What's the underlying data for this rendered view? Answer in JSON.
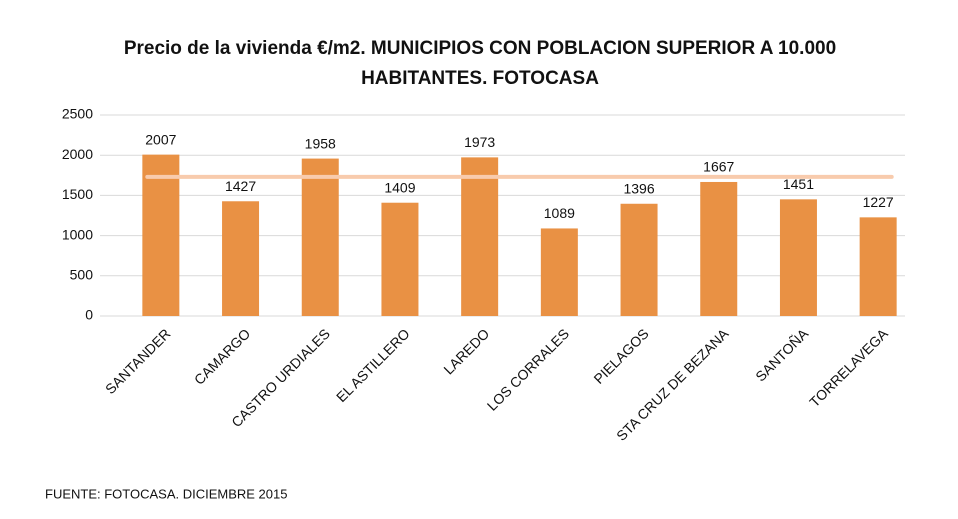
{
  "chart_data": {
    "type": "bar",
    "title": "Precio de la vivienda €/m2. MUNICIPIOS CON POBLACION SUPERIOR A 10.000 HABITANTES. FOTOCASA",
    "categories": [
      "SANTANDER",
      "CAMARGO",
      "CASTRO URDIALES",
      "EL ASTILLERO",
      "LAREDO",
      "LOS CORRALES",
      "PIELAGOS",
      "STA CRUZ DE BEZANA",
      "SANTOÑA",
      "TORRELAVEGA"
    ],
    "values": [
      2007,
      1427,
      1958,
      1409,
      1973,
      1089,
      1396,
      1667,
      1451,
      1227
    ],
    "color": "#e99144",
    "reference_line": {
      "value": 1730,
      "color": "#f8cbad"
    },
    "ylim": [
      0,
      2500
    ],
    "yticks": [
      0,
      500,
      1000,
      1500,
      2000,
      2500
    ],
    "grid": true,
    "source": "FUENTE: FOTOCASA. DICIEMBRE 2015"
  }
}
